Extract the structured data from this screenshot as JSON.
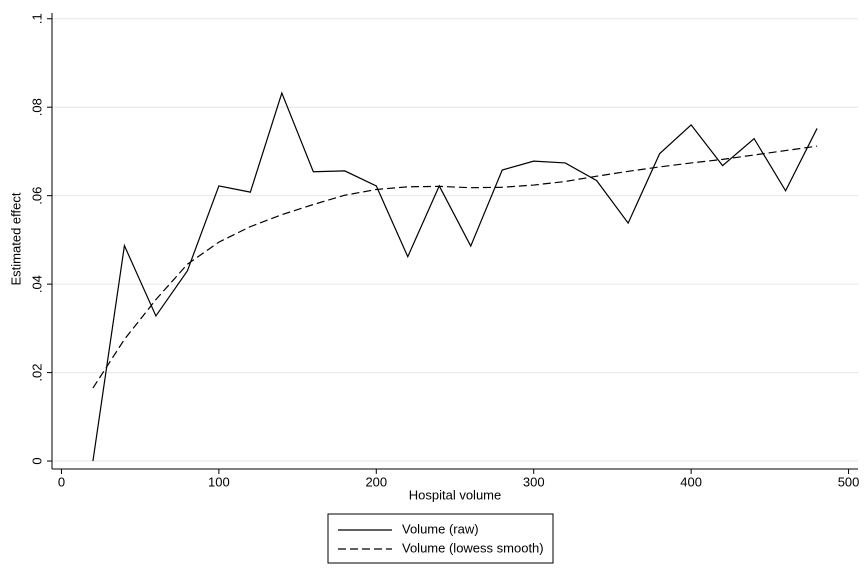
{
  "chart_data": {
    "type": "line",
    "x_label": "Hospital volume",
    "y_label": "Estimated effect",
    "x": [
      20,
      40,
      60,
      80,
      100,
      120,
      140,
      160,
      180,
      200,
      220,
      240,
      260,
      280,
      300,
      320,
      340,
      360,
      380,
      400,
      420,
      440,
      460,
      480
    ],
    "series": [
      {
        "name": "Volume (raw)",
        "color": "#000000",
        "style": "solid",
        "values": [
          0,
          0.0487,
          0.0328,
          0.043,
          0.0622,
          0.0608,
          0.0832,
          0.0654,
          0.0656,
          0.0622,
          0.0462,
          0.0622,
          0.0486,
          0.0658,
          0.0678,
          0.0674,
          0.0634,
          0.0538,
          0.0695,
          0.076,
          0.0668,
          0.0729,
          0.0611,
          0.0752
        ]
      },
      {
        "name": "Volume (lowess smooth)",
        "color": "#000000",
        "style": "dash",
        "values": [
          0.0165,
          0.0275,
          0.0365,
          0.0445,
          0.0495,
          0.053,
          0.0557,
          0.058,
          0.0601,
          0.0614,
          0.062,
          0.0621,
          0.0618,
          0.0619,
          0.0624,
          0.0632,
          0.0644,
          0.0655,
          0.0665,
          0.0674,
          0.0682,
          0.0692,
          0.0702,
          0.0712
        ]
      }
    ],
    "xlim": [
      -6,
      506
    ],
    "ylim": [
      -0.0018,
      0.1013
    ],
    "xticks": [
      0,
      100,
      200,
      300,
      400,
      500
    ],
    "yticks": [
      0,
      {
        "value": 0.02,
        "label": ".02"
      },
      {
        "value": 0.04,
        "label": ".04"
      },
      {
        "value": 0.06,
        "label": ".06"
      },
      {
        "value": 0.08,
        "label": ".08"
      },
      {
        "value": 0.1,
        "label": ".1"
      }
    ],
    "grid": true,
    "legend": "bottom"
  }
}
